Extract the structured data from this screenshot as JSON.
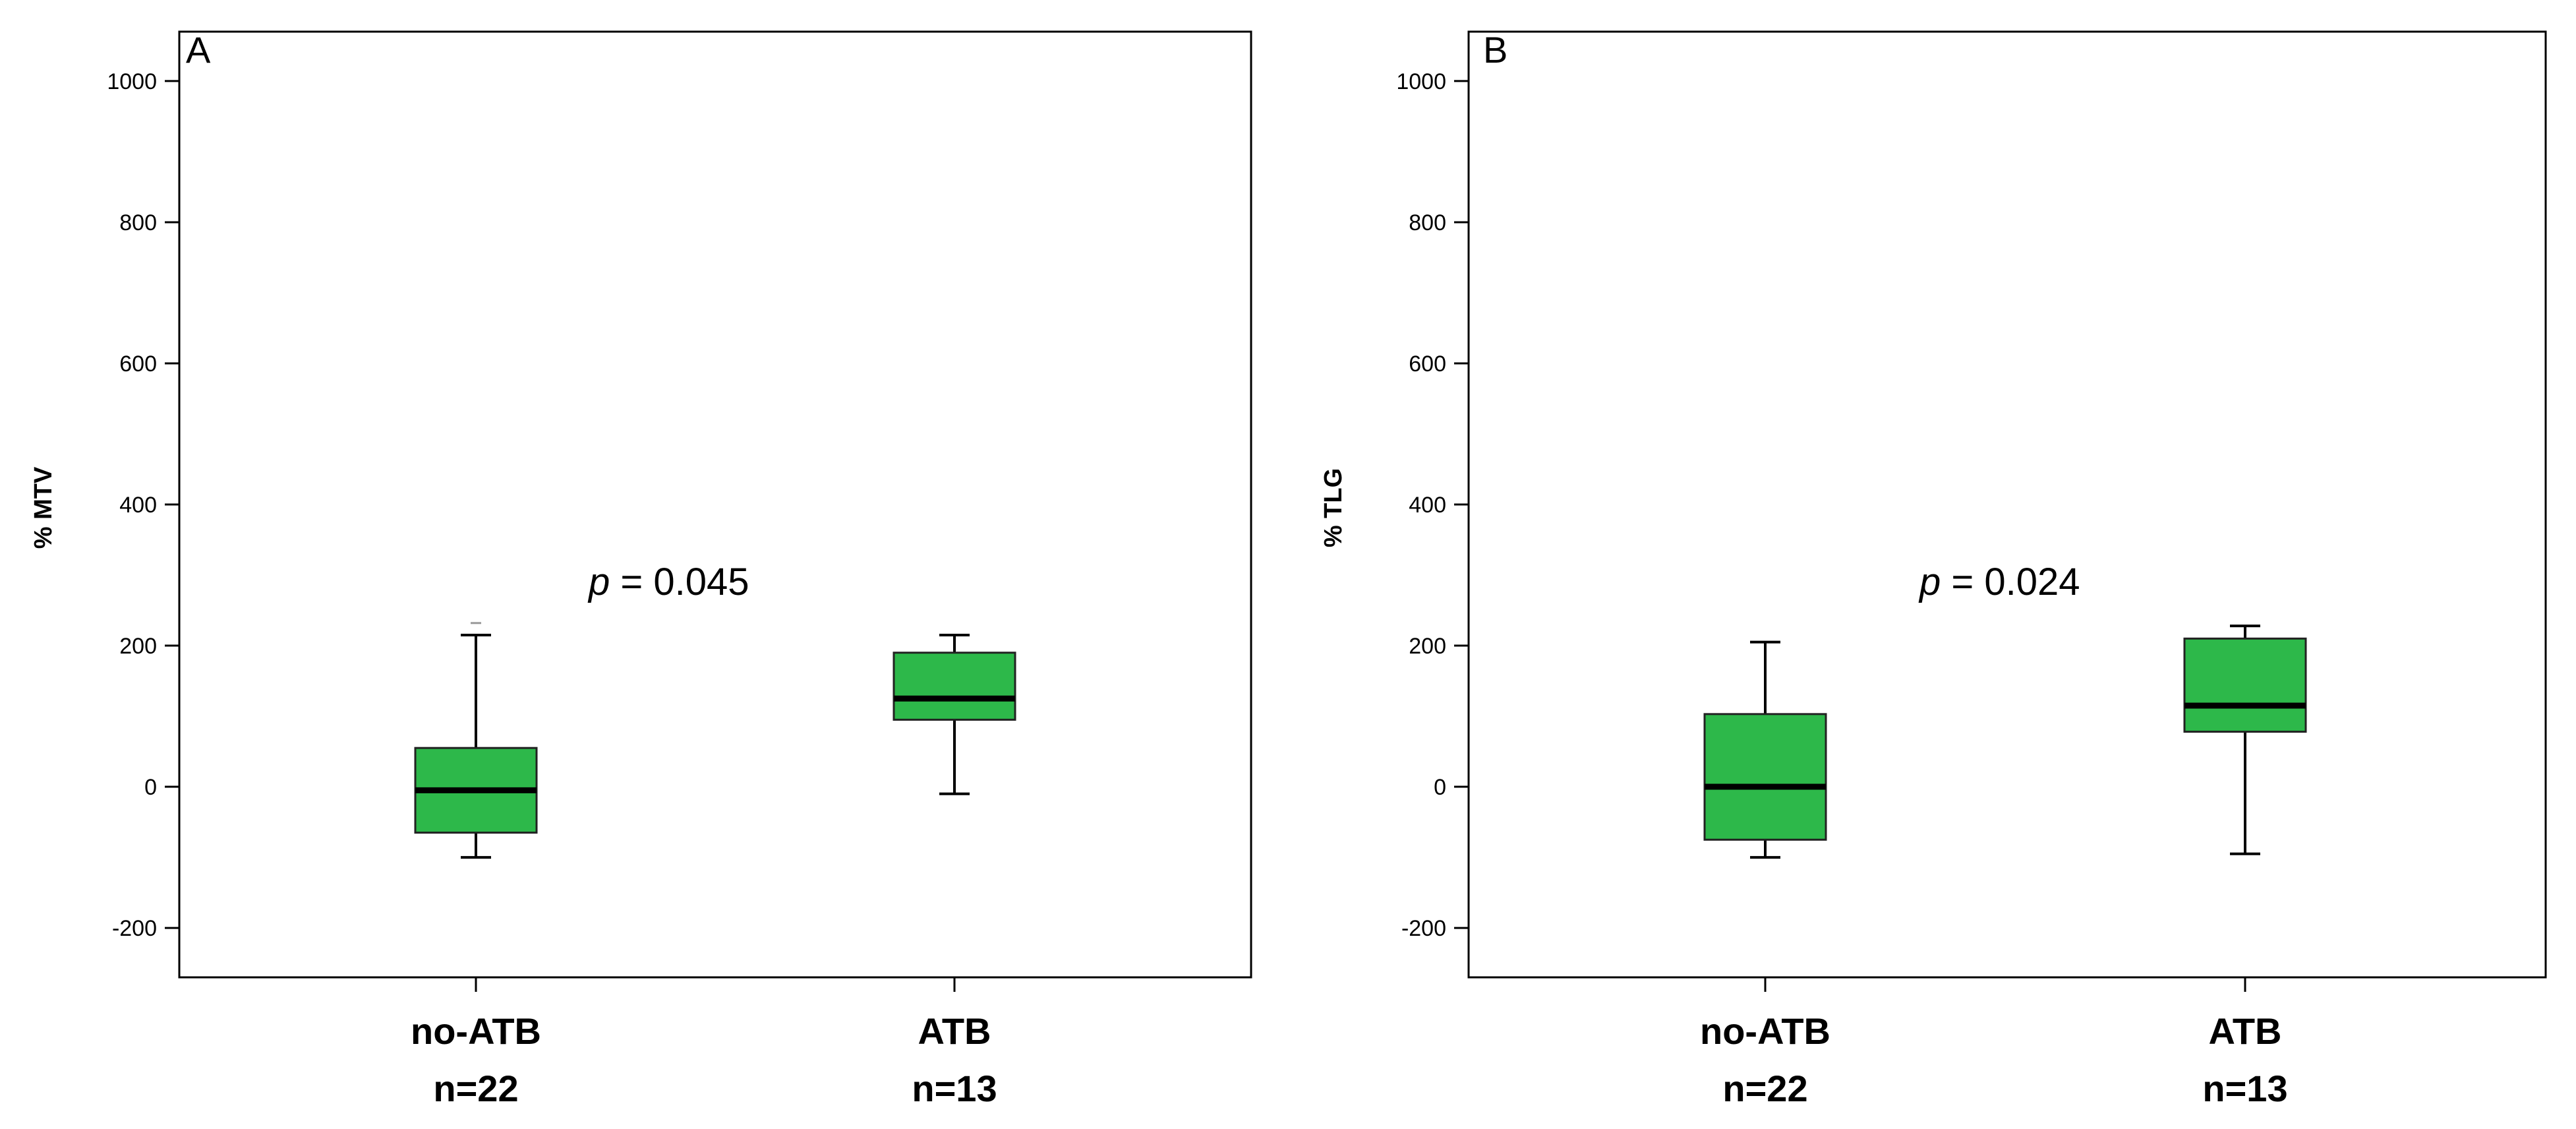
{
  "chart_data": [
    {
      "type": "box",
      "panel": "A",
      "ylabel": "% MTV",
      "ylim": [
        -270,
        1070
      ],
      "yticks": [
        -200,
        0,
        200,
        400,
        600,
        800,
        1000
      ],
      "annotation": {
        "p_italic": "p",
        "text": " = 0.045"
      },
      "color": "#2db84a",
      "categories": [
        {
          "label": "no-ATB",
          "n": "n=22",
          "min": -100,
          "q1": -65,
          "median": -5,
          "q3": 55,
          "max": 215,
          "outlier": 232
        },
        {
          "label": "ATB",
          "n": "n=13",
          "min": -10,
          "q1": 95,
          "median": 125,
          "q3": 190,
          "max": 215
        }
      ]
    },
    {
      "type": "box",
      "panel": "B",
      "ylabel": "% TLG",
      "ylim": [
        -270,
        1070
      ],
      "yticks": [
        -200,
        0,
        200,
        400,
        600,
        800,
        1000
      ],
      "annotation": {
        "p_italic": "p",
        "text": " = 0.024"
      },
      "color": "#2db84a",
      "categories": [
        {
          "label": "no-ATB",
          "n": "n=22",
          "min": -100,
          "q1": -75,
          "median": 0,
          "q3": 103,
          "max": 205
        },
        {
          "label": "ATB",
          "n": "n=13",
          "min": -95,
          "q1": 78,
          "median": 115,
          "q3": 210,
          "max": 228
        }
      ]
    }
  ]
}
